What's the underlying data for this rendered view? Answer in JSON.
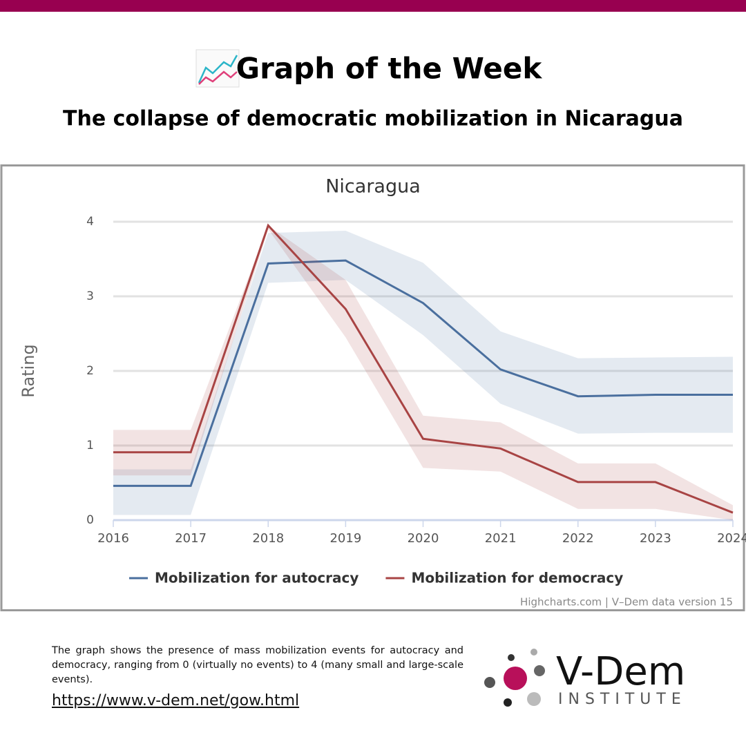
{
  "header": {
    "title": "Graph of the Week",
    "subtitle": "The collapse of democratic mobilization in Nicaragua"
  },
  "chart_data": {
    "type": "line",
    "title": "Nicaragua",
    "y_label": "Rating",
    "x": [
      2016,
      2017,
      2018,
      2019,
      2020,
      2021,
      2022,
      2023,
      2024
    ],
    "xlim": [
      2016,
      2024
    ],
    "xticks": [
      2016,
      2017,
      2018,
      2019,
      2020,
      2021,
      2022,
      2023,
      2024
    ],
    "ylim": [
      0,
      4
    ],
    "yticks": [
      0,
      1,
      2,
      3,
      4
    ],
    "grid": true,
    "series": [
      {
        "name": "Mobilization for autocracy",
        "color": "#4a6f9e",
        "values": [
          0.46,
          0.46,
          3.44,
          3.48,
          2.91,
          2.02,
          1.66,
          1.68,
          1.68
        ],
        "upper": [
          0.68,
          0.68,
          3.85,
          3.88,
          3.45,
          2.53,
          2.17,
          2.18,
          2.19
        ],
        "lower": [
          0.07,
          0.07,
          3.18,
          3.22,
          2.48,
          1.56,
          1.16,
          1.17,
          1.17
        ]
      },
      {
        "name": "Mobilization for democracy",
        "color": "#a84444",
        "values": [
          0.91,
          0.91,
          3.95,
          2.83,
          1.09,
          0.96,
          0.51,
          0.51,
          0.1
        ],
        "upper": [
          1.21,
          1.21,
          3.95,
          3.22,
          1.4,
          1.31,
          0.76,
          0.76,
          0.2
        ],
        "lower": [
          0.6,
          0.6,
          3.9,
          2.45,
          0.7,
          0.65,
          0.15,
          0.15,
          0
        ]
      }
    ],
    "credits": "Highcharts.com | V–Dem data version 15"
  },
  "footer": {
    "description": "The graph shows the presence of mass mobilization events for autocracy and democracy, ranging from 0 (virtually no events) to 4 (many small and large-scale events).",
    "url": "https://www.v-dem.net/gow.html",
    "logo_name": "V-Dem",
    "logo_sub": "INSTITUTE"
  }
}
